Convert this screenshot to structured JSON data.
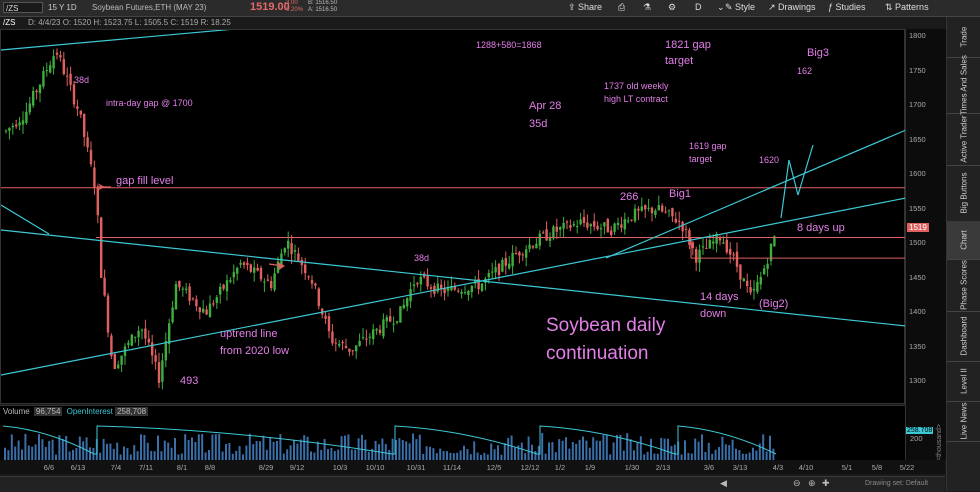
{
  "topbar": {
    "symbol": "/ZS",
    "timeframe": "15 Y 1D",
    "name": "Soybean Futures,ETH (MAY 23)",
    "price": "1519.00",
    "change": "-3.00",
    "change_pct": "-0.20%",
    "bid": "B: 1516.50",
    "ask": "A: 1516.50",
    "share": "Share",
    "style": "Style",
    "drawings": "Drawings",
    "studies": "Studies",
    "patterns": "Patterns",
    "d": "D"
  },
  "infobar": {
    "symbol": "/ZS",
    "ohlc": "D: 4/4/23   O: 1520   H: 1523.75   L: 1505.5   C: 1519   R: 18.25"
  },
  "price_axis": {
    "ticks": [
      "1800",
      "1750",
      "1700",
      "1650",
      "1600",
      "1550",
      "1500",
      "1450",
      "1400",
      "1350",
      "1300"
    ],
    "current": "1519"
  },
  "volume": {
    "label": "Volume",
    "volume": "96,754",
    "oi_label": "OpenInterest",
    "oi": "258,708",
    "tick": "200",
    "oi_badge": "258.708",
    "units": "<thousand>"
  },
  "x_axis": [
    "6/6",
    "6/13",
    "7/4",
    "7/11",
    "8/1",
    "8/8",
    "8/29",
    "9/12",
    "10/3",
    "10/10",
    "10/31",
    "11/14",
    "12/5",
    "12/12",
    "1/2",
    "1/9",
    "1/30",
    "2/13",
    "3/6",
    "3/13",
    "4/3",
    "4/10",
    "5/1",
    "5/8",
    "5/22"
  ],
  "annotations": {
    "sum": "1288+580=1868",
    "gap_target_1821_a": "1821 gap",
    "gap_target_1821_b": "target",
    "big3": "Big3",
    "n162": "162",
    "old_weekly_a": "1737 old weekly",
    "old_weekly_b": "high LT contract",
    "apr28_a": "Apr 28",
    "apr28_b": "35d",
    "n38d_top": "38d",
    "intraday_gap": "intra-day gap @ 1700",
    "gap_fill": "gap fill level",
    "gap_1619_a": "1619 gap",
    "gap_1619_b": "target",
    "n1620": "1620",
    "n266": "266",
    "big1": "Big1",
    "days_up": "8 days up",
    "n38d_mid": "38d",
    "uptrend_a": "uptrend line",
    "uptrend_b": "from 2020 low",
    "n493": "493",
    "title_a": "Soybean daily",
    "title_b": "continuation",
    "days_down_a": "14 days",
    "days_down_b": "down",
    "big2": "(Big2)"
  },
  "sidebar": [
    "Trade",
    "Times And Sales",
    "Active Trader",
    "Big Buttons",
    "Chart",
    "Phase Scores",
    "Dashboard",
    "Level II",
    "Live News"
  ],
  "bottombar": {
    "drawing_set": "Drawing set: Default"
  },
  "colors": {
    "up": "#3fae3f",
    "down": "#e06060",
    "trend": "#3cc8d4",
    "annotation": "#e37fe8",
    "level": "#e06060"
  }
}
